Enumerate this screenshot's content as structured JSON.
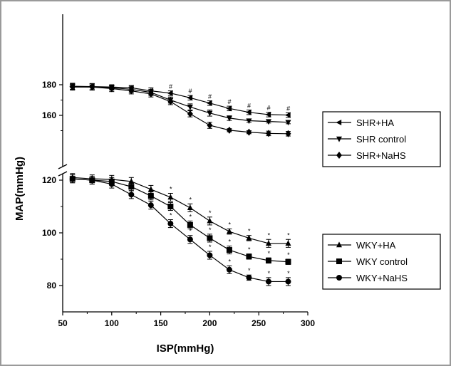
{
  "chart_data": {
    "type": "line",
    "xlabel": "ISP(mmHg)",
    "ylabel": "MAP(mmHg)",
    "xlim": [
      50,
      300
    ],
    "x_ticks": [
      50,
      100,
      150,
      200,
      250,
      300
    ],
    "y_ticks_upper": [
      160,
      180
    ],
    "y_ticks_lower": [
      80,
      100,
      120
    ],
    "axis_break": true,
    "x": [
      60,
      80,
      100,
      120,
      140,
      160,
      180,
      200,
      220,
      240,
      260,
      280
    ],
    "series": [
      {
        "name": "SHR+HA",
        "marker": "triangle-left",
        "panel": "upper",
        "values": [
          179,
          178.8,
          178.5,
          178,
          176,
          174.5,
          171.5,
          168,
          164.5,
          162,
          160.5,
          160.2
        ],
        "errors": [
          2,
          2,
          1.5,
          1.5,
          2,
          1.5,
          1.5,
          1.5,
          1.5,
          1.5,
          1.5,
          1.5
        ],
        "significance": [
          "",
          "",
          "",
          "",
          "",
          "#",
          "#",
          "#",
          "#",
          "#",
          "#",
          "#"
        ]
      },
      {
        "name": "SHR control",
        "marker": "triangle-down",
        "panel": "upper",
        "values": [
          178.8,
          178.5,
          178,
          177,
          175,
          170,
          165.5,
          161.5,
          158.2,
          156.5,
          156,
          155.5
        ],
        "errors": [
          2,
          2,
          1.5,
          2,
          2,
          2,
          2,
          2,
          1.5,
          1,
          1,
          1
        ],
        "significance": [
          "",
          "",
          "",
          "",
          "",
          "",
          "",
          "",
          "",
          "",
          "",
          ""
        ]
      },
      {
        "name": "SHR+NaHS",
        "marker": "diamond",
        "panel": "upper",
        "values": [
          178.5,
          178.5,
          177.5,
          176,
          174,
          169,
          161,
          153.5,
          150.3,
          149,
          148.2,
          148
        ],
        "errors": [
          2,
          2,
          2,
          2,
          2,
          2,
          2,
          2,
          1,
          1,
          1.5,
          1.5
        ],
        "significance": [
          "",
          "",
          "",
          "",
          "",
          "",
          "",
          "",
          "",
          "",
          "",
          ""
        ]
      },
      {
        "name": "WKY+HA",
        "marker": "triangle-up",
        "panel": "lower",
        "values": [
          121,
          120.5,
          120.3,
          119.5,
          116.5,
          113.5,
          109.5,
          104.5,
          100.5,
          98,
          96,
          96
        ],
        "errors": [
          1.5,
          1.5,
          1.5,
          1.5,
          1.5,
          1.5,
          1.5,
          1.5,
          1,
          1,
          1.5,
          1.5
        ],
        "significance": [
          "",
          "",
          "",
          "",
          "",
          "*",
          "*",
          "*",
          "*",
          "*",
          "*",
          "*"
        ]
      },
      {
        "name": "WKY control",
        "marker": "square",
        "panel": "lower",
        "values": [
          120.5,
          120,
          119.5,
          117.5,
          114,
          110,
          103,
          98,
          93.5,
          91,
          89.5,
          89
        ],
        "errors": [
          1.5,
          1.5,
          1.5,
          1.5,
          1.5,
          1.5,
          1.5,
          1.5,
          1.5,
          1,
          1,
          1
        ],
        "significance": [
          "",
          "",
          "",
          "",
          "",
          "*",
          "*",
          "*",
          "*",
          "*",
          "*",
          "*"
        ]
      },
      {
        "name": "WKY+NaHS",
        "marker": "circle",
        "panel": "lower",
        "values": [
          120.5,
          120,
          118.5,
          114.5,
          110.5,
          103.5,
          97.5,
          91.5,
          86,
          83,
          81.5,
          81.5
        ],
        "errors": [
          1.5,
          1.5,
          1.5,
          1.5,
          1.5,
          1.5,
          1.5,
          1.5,
          1.5,
          1,
          1.5,
          1.5
        ],
        "significance": [
          "",
          "",
          "",
          "",
          "",
          "*",
          "*",
          "*",
          "*",
          "*",
          "*",
          "*"
        ]
      }
    ],
    "legends": [
      {
        "placement": "right-upper",
        "entries": [
          "SHR+HA",
          "SHR control",
          "SHR+NaHS"
        ]
      },
      {
        "placement": "right-lower",
        "entries": [
          "WKY+HA",
          "WKY control",
          "WKY+NaHS"
        ]
      }
    ]
  }
}
